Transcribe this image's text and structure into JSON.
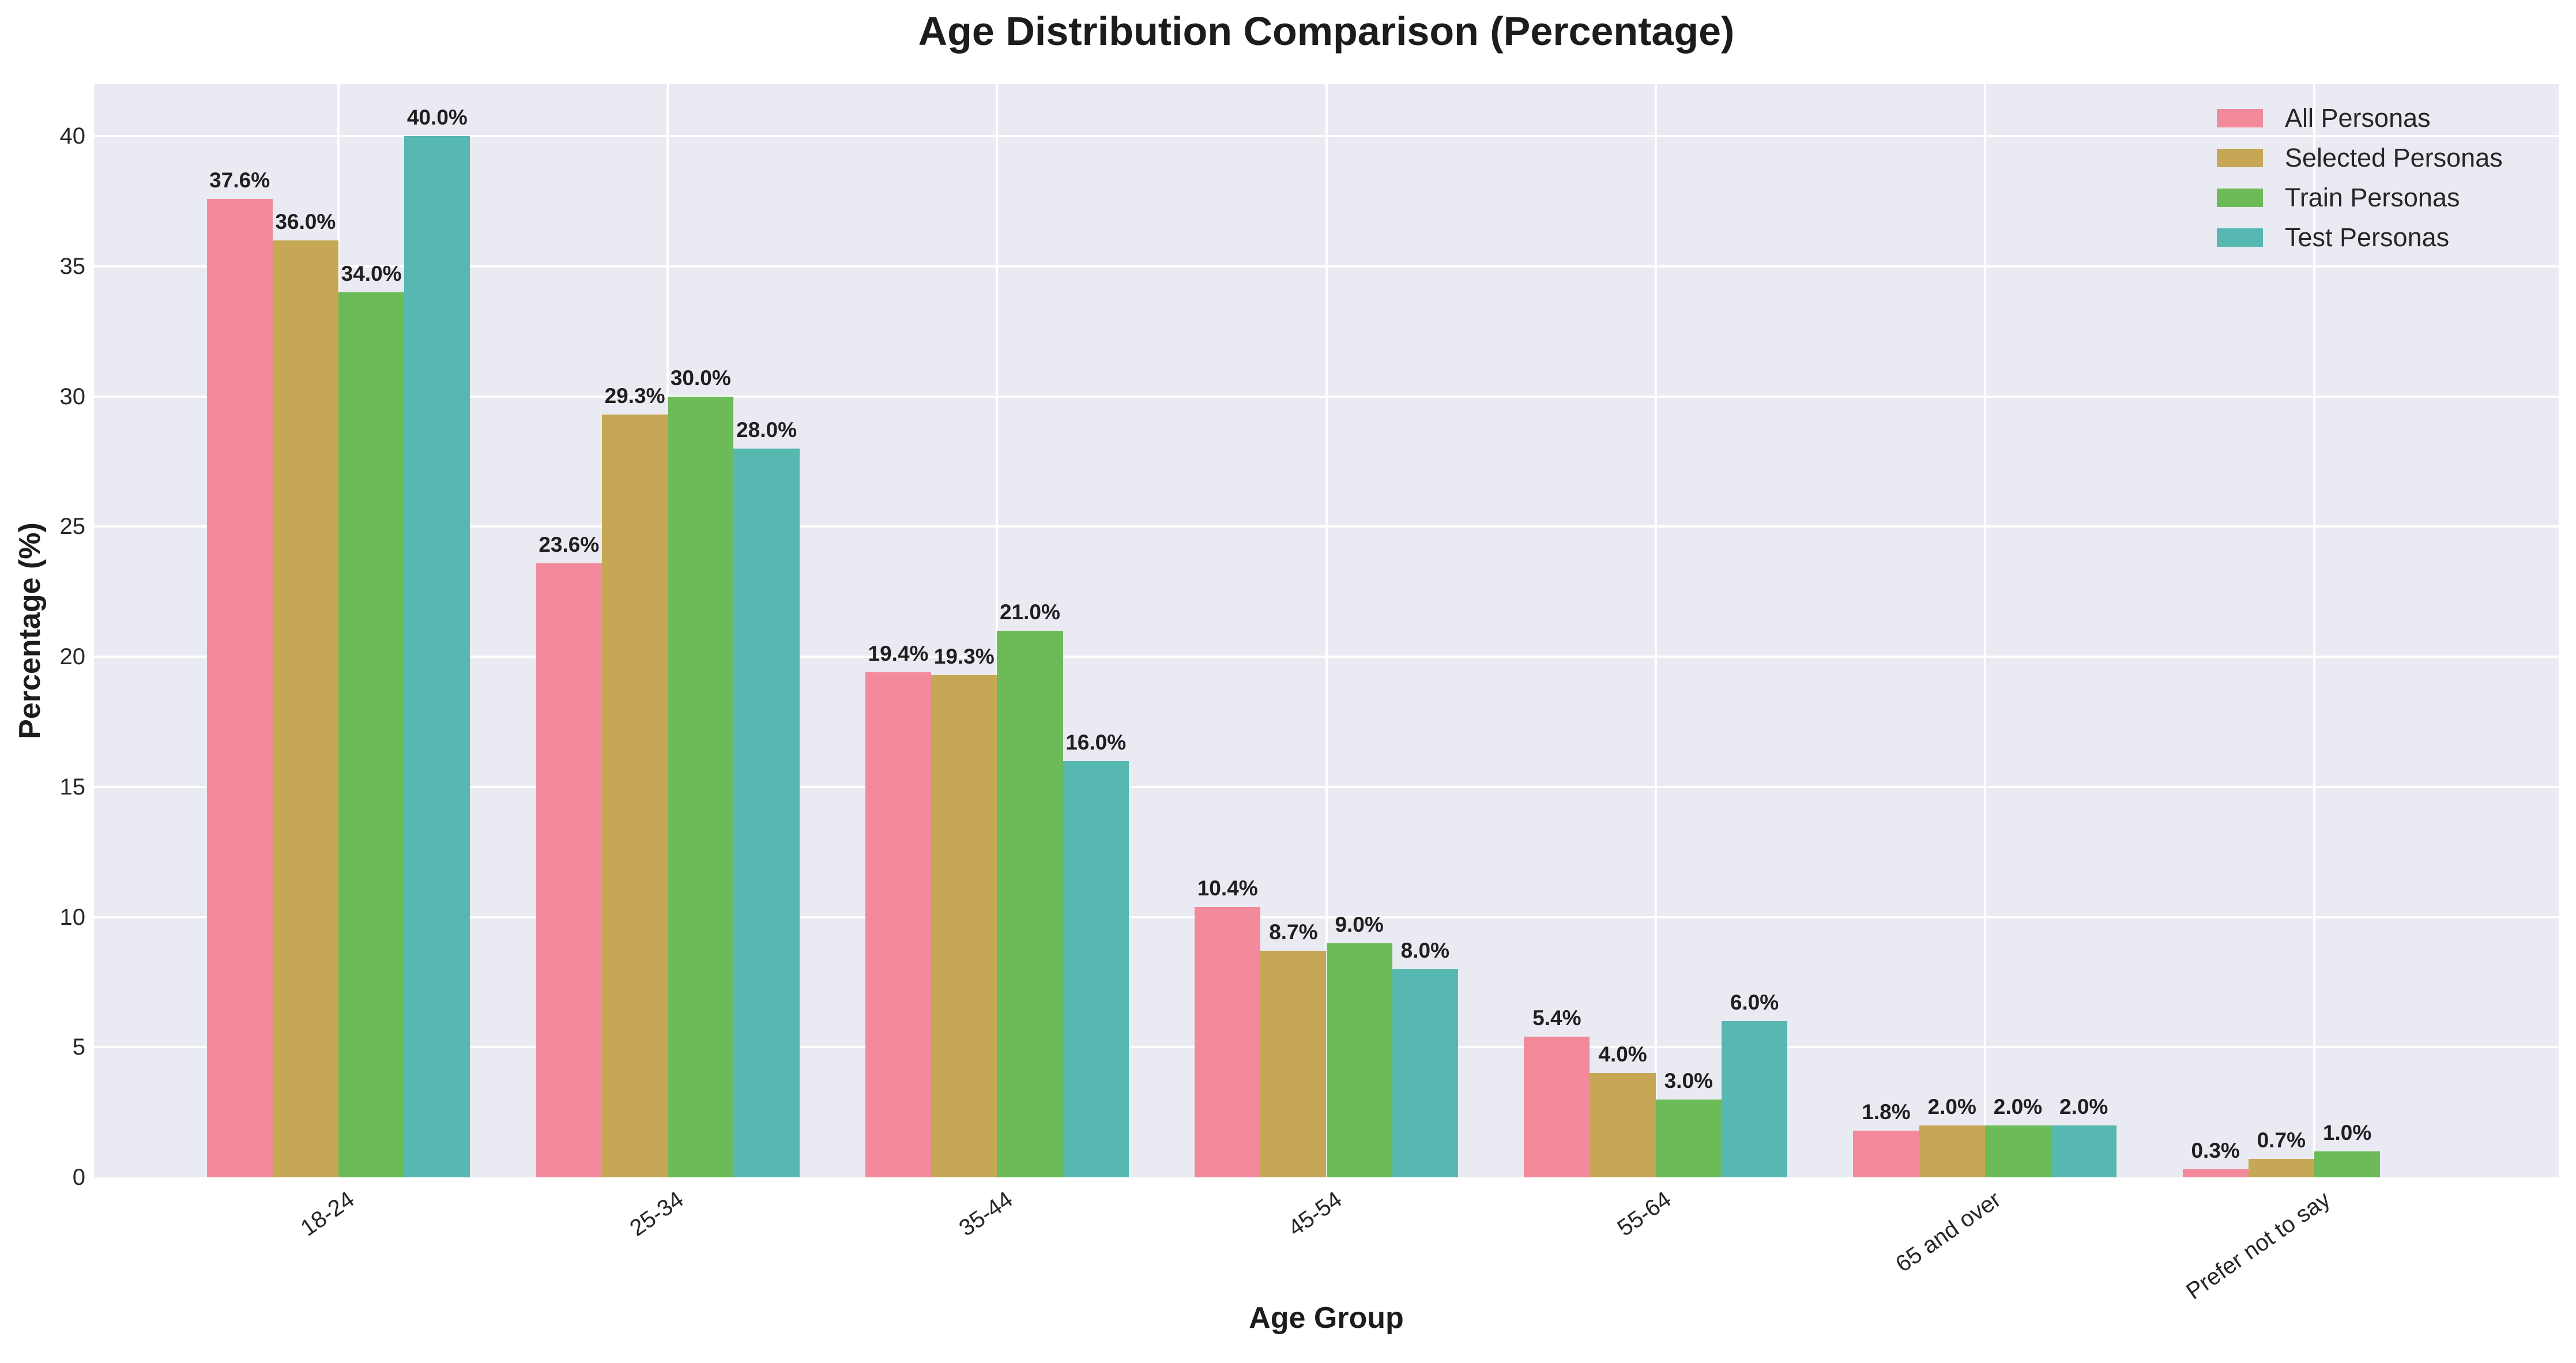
{
  "chart_data": {
    "type": "bar",
    "title": "Age Distribution Comparison (Percentage)",
    "xlabel": "Age Group",
    "ylabel": "Percentage (%)",
    "categories": [
      "18-24",
      "25-34",
      "35-44",
      "45-54",
      "55-64",
      "65 and over",
      "Prefer not to say"
    ],
    "series": [
      {
        "name": "All Personas",
        "color": "#F28A9B",
        "values": [
          37.6,
          23.6,
          19.4,
          10.4,
          5.4,
          1.8,
          0.3
        ],
        "labels": [
          "37.6%",
          "23.6%",
          "19.4%",
          "10.4%",
          "5.4%",
          "1.8%",
          "0.3%"
        ]
      },
      {
        "name": "Selected Personas",
        "color": "#C5A755",
        "values": [
          36.0,
          29.3,
          19.3,
          8.7,
          4.0,
          2.0,
          0.7
        ],
        "labels": [
          "36.0%",
          "29.3%",
          "19.3%",
          "8.7%",
          "4.0%",
          "2.0%",
          "0.7%"
        ]
      },
      {
        "name": "Train Personas",
        "color": "#6CBB58",
        "values": [
          34.0,
          30.0,
          21.0,
          9.0,
          3.0,
          2.0,
          1.0
        ],
        "labels": [
          "34.0%",
          "30.0%",
          "21.0%",
          "9.0%",
          "3.0%",
          "2.0%",
          "1.0%"
        ]
      },
      {
        "name": "Test Personas",
        "color": "#57B8B2",
        "values": [
          40.0,
          28.0,
          16.0,
          8.0,
          6.0,
          2.0,
          null
        ],
        "labels": [
          "40.0%",
          "28.0%",
          "16.0%",
          "8.0%",
          "6.0%",
          "2.0%",
          null
        ]
      }
    ],
    "yticks": [
      0,
      5,
      10,
      15,
      20,
      25,
      30,
      35,
      40
    ],
    "ylim": [
      0,
      42
    ],
    "legend_position": "upper right",
    "grid": true,
    "styles": {
      "plot_background": "#EAEAF2",
      "grid_color": "#FFFFFF",
      "tick_text_color": "#262626",
      "title_color": "#1C1C1C"
    }
  }
}
